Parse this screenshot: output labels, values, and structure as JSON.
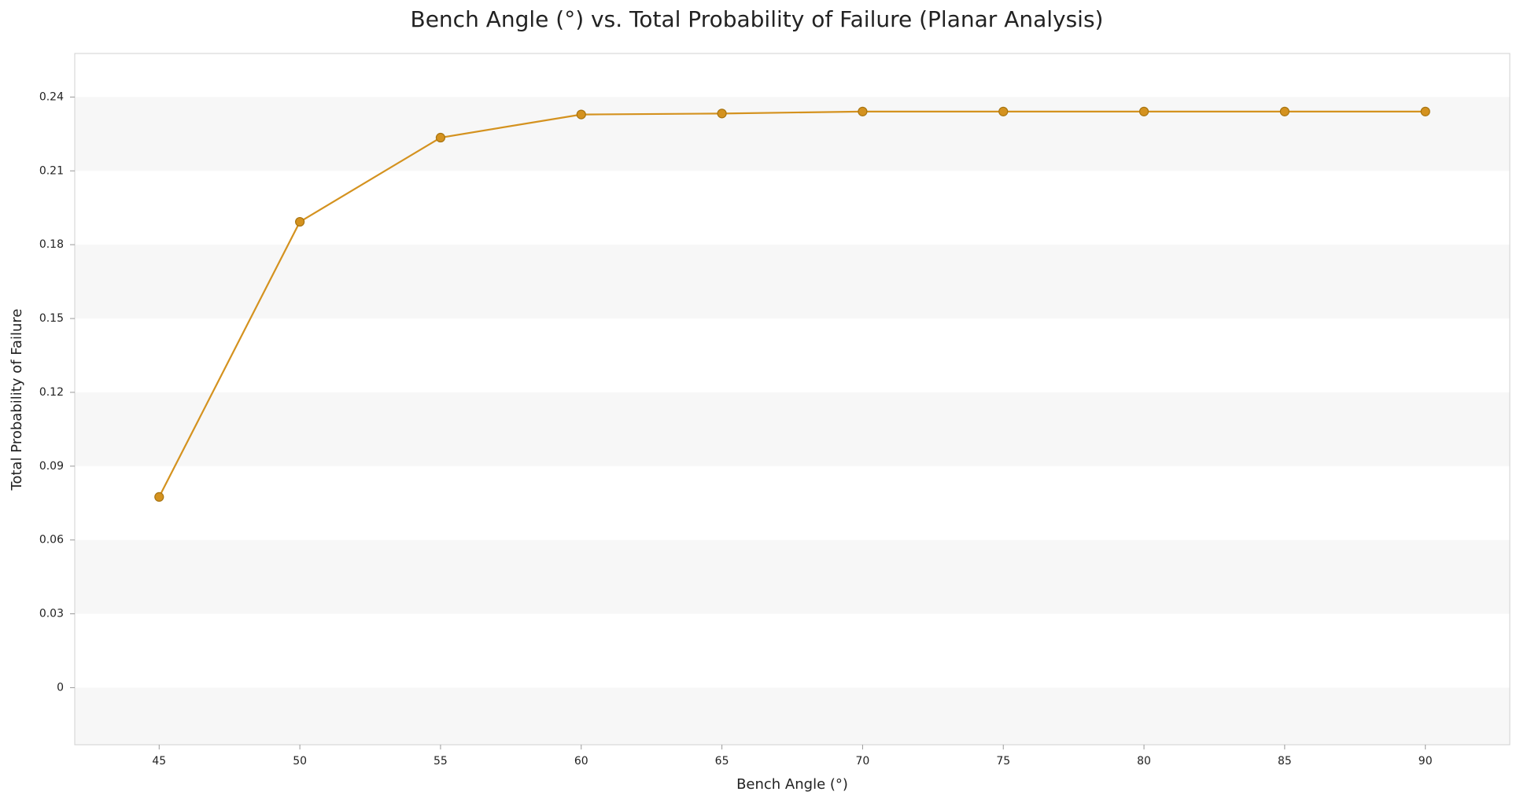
{
  "chart_data": {
    "type": "line",
    "title": "Bench Angle (°) vs. Total Probability of Failure (Planar Analysis)",
    "x_label": "Bench Angle (°)",
    "y_label": "Total Probability of Failure",
    "x": [
      45,
      50,
      55,
      60,
      65,
      70,
      75,
      80,
      85,
      90
    ],
    "values": [
      0.0775,
      0.1893,
      0.2235,
      0.2329,
      0.2333,
      0.2341,
      0.2341,
      0.2341,
      0.2341,
      0.2341
    ],
    "color": "#d4921f",
    "xlim": [
      42,
      93
    ],
    "xticks": [
      45,
      50,
      55,
      60,
      65,
      70,
      75,
      80,
      85,
      90
    ],
    "ylim": [
      -0.0232,
      0.2577
    ],
    "yticks": [
      0,
      0.03,
      0.06,
      0.09,
      0.12,
      0.15,
      0.18,
      0.21,
      0.24
    ],
    "banded_background": true
  }
}
